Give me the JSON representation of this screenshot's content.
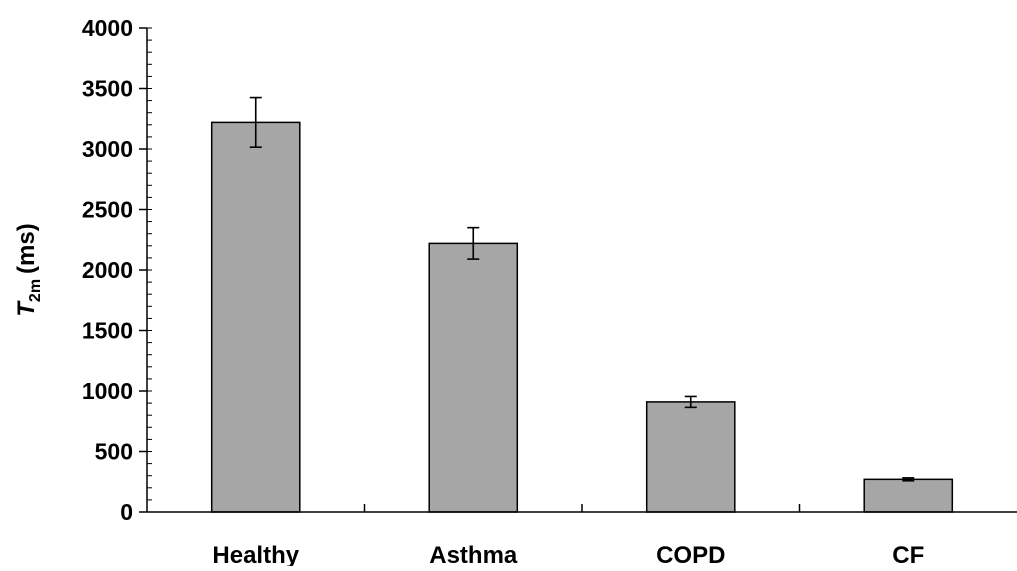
{
  "chart_data": {
    "type": "bar",
    "categories": [
      "Healthy",
      "Asthma",
      "COPD",
      "CF"
    ],
    "values": [
      3220,
      2220,
      910,
      270
    ],
    "errors": [
      205,
      130,
      45,
      12
    ],
    "ylabel": {
      "main": "T",
      "sub": "2m",
      "unit": "(ms)"
    },
    "xlabel": "",
    "ylim": [
      0,
      4000
    ],
    "y_major_step": 500,
    "y_minor_step": 100,
    "y_ticks": [
      "0",
      "500",
      "1000",
      "1500",
      "2000",
      "2500",
      "3000",
      "3500",
      "4000"
    ],
    "grid": false,
    "legend": "none",
    "bar_color": "#a6a6a6",
    "bar_edge_color": "#000000"
  }
}
